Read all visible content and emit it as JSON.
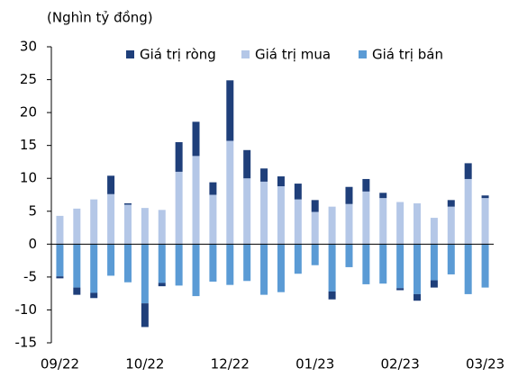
{
  "chart_data": {
    "type": "bar",
    "stacked": true,
    "subtitle": "(Nghìn tỷ đồng)",
    "categories": [
      "09/22",
      null,
      null,
      null,
      null,
      "10/22",
      null,
      null,
      null,
      null,
      "12/22",
      null,
      null,
      null,
      null,
      "01/23",
      null,
      null,
      null,
      null,
      "02/23",
      null,
      null,
      null,
      null,
      "03/23"
    ],
    "series": [
      {
        "name": "Giá trị ròng",
        "color": "#1f3f7a",
        "values": [
          -0.3,
          -1.1,
          -0.8,
          2.8,
          0.2,
          -3.6,
          -0.5,
          4.5,
          5.2,
          1.9,
          9.2,
          4.3,
          2.0,
          1.5,
          2.4,
          1.8,
          -1.2,
          2.6,
          1.9,
          0.8,
          -0.3,
          -1.0,
          -1.1,
          1.0,
          2.4,
          0.4
        ]
      },
      {
        "name": "Giá trị mua",
        "color": "#b4c7e7",
        "values": [
          4.3,
          5.4,
          6.8,
          7.6,
          6.0,
          5.5,
          5.2,
          11.0,
          13.4,
          7.5,
          15.7,
          10.0,
          9.5,
          8.8,
          6.8,
          4.9,
          5.7,
          6.1,
          8.0,
          7.0,
          6.4,
          6.2,
          4.0,
          5.7,
          9.9,
          7.0
        ]
      },
      {
        "name": "Giá trị bán",
        "color": "#5b9bd5",
        "values": [
          -4.9,
          -6.6,
          -7.4,
          -4.8,
          -5.8,
          -9.0,
          -5.9,
          -6.3,
          -7.9,
          -5.7,
          -6.2,
          -5.6,
          -7.7,
          -7.3,
          -4.5,
          -3.2,
          -7.2,
          -3.5,
          -6.1,
          -6.0,
          -6.7,
          -7.6,
          -5.5,
          -4.6,
          -7.6,
          -6.6
        ]
      }
    ],
    "ylim": [
      -15,
      30
    ],
    "yticks": [
      -15,
      -10,
      -5,
      0,
      5,
      10,
      15,
      20,
      25,
      30
    ],
    "legend": "top"
  }
}
